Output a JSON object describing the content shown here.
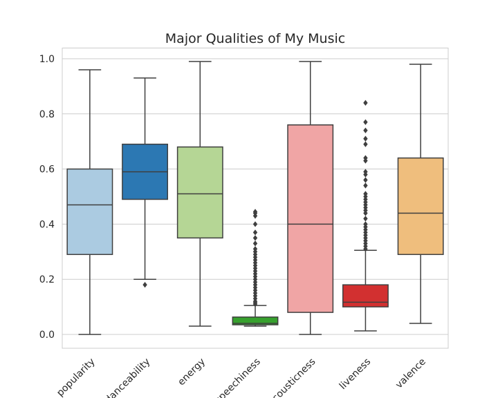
{
  "chart_data": {
    "type": "box",
    "title": "Major Qualities of My Music",
    "xlabel": "",
    "ylabel": "",
    "ylim": [
      -0.05,
      1.04
    ],
    "yticks": [
      "0.0",
      "0.2",
      "0.4",
      "0.6",
      "0.8",
      "1.0"
    ],
    "grid": true,
    "legend": "none",
    "categories": [
      "popularity",
      "danceability",
      "energy",
      "speechiness",
      "acousticness",
      "liveness",
      "valence"
    ],
    "series": [
      {
        "category": "popularity",
        "color": "#abcbe1",
        "min": 0.0,
        "q1": 0.29,
        "median": 0.47,
        "q3": 0.6,
        "max": 0.96,
        "fliers": []
      },
      {
        "category": "danceability",
        "color": "#2c78b3",
        "min": 0.2,
        "q1": 0.49,
        "median": 0.59,
        "q3": 0.69,
        "max": 0.93,
        "fliers": [
          0.18
        ]
      },
      {
        "category": "energy",
        "color": "#b5d695",
        "min": 0.03,
        "q1": 0.35,
        "median": 0.51,
        "q3": 0.68,
        "max": 0.99,
        "fliers": []
      },
      {
        "category": "speechiness",
        "color": "#37a12e",
        "min": 0.03,
        "q1": 0.035,
        "median": 0.04,
        "q3": 0.063,
        "max": 0.105,
        "fliers": [
          0.11,
          0.115,
          0.12,
          0.13,
          0.14,
          0.15,
          0.16,
          0.17,
          0.18,
          0.19,
          0.2,
          0.21,
          0.22,
          0.23,
          0.24,
          0.25,
          0.26,
          0.27,
          0.28,
          0.29,
          0.3,
          0.31,
          0.33,
          0.35,
          0.37,
          0.4,
          0.43,
          0.44,
          0.445
        ]
      },
      {
        "category": "acousticness",
        "color": "#f0a5a5",
        "min": 0.0,
        "q1": 0.08,
        "median": 0.4,
        "q3": 0.76,
        "max": 0.99,
        "fliers": []
      },
      {
        "category": "liveness",
        "color": "#d23030",
        "min": 0.013,
        "q1": 0.1,
        "median": 0.117,
        "q3": 0.18,
        "max": 0.305,
        "fliers": [
          0.31,
          0.32,
          0.33,
          0.34,
          0.35,
          0.36,
          0.37,
          0.38,
          0.39,
          0.4,
          0.42,
          0.44,
          0.45,
          0.46,
          0.47,
          0.48,
          0.49,
          0.5,
          0.51,
          0.54,
          0.56,
          0.58,
          0.59,
          0.63,
          0.64,
          0.69,
          0.71,
          0.74,
          0.77,
          0.84
        ]
      },
      {
        "category": "valence",
        "color": "#efbe7d",
        "min": 0.04,
        "q1": 0.29,
        "median": 0.44,
        "q3": 0.64,
        "max": 0.98,
        "fliers": []
      }
    ]
  }
}
